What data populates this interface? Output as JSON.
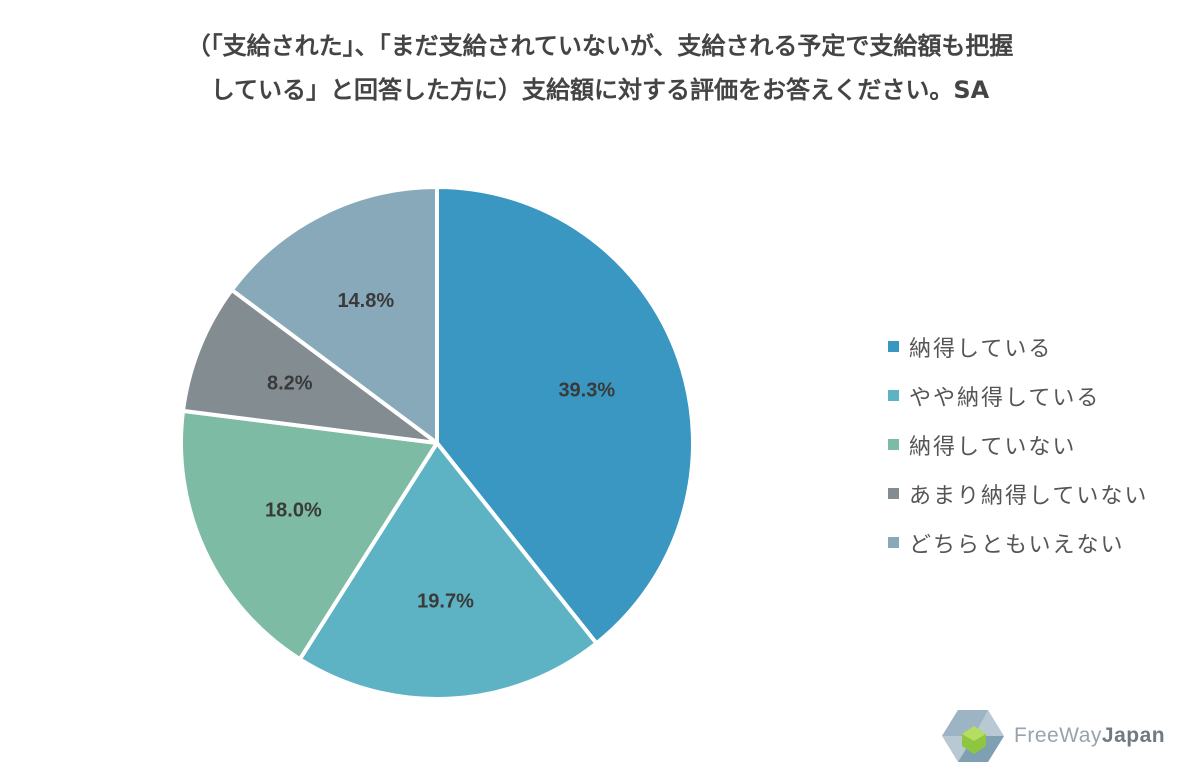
{
  "title": {
    "line1": "（「支給された」、「まだ支給されていないが、支給される予定で支給額も把握",
    "line2": "している」と回答した方に）支給額に対する評価をお答えください。SA"
  },
  "chart_data": {
    "type": "pie",
    "categories": [
      "納得している",
      "やや納得している",
      "納得していない",
      "あまり納得していない",
      "どちらともいえない"
    ],
    "values": [
      39.3,
      19.7,
      18.0,
      8.2,
      14.8
    ],
    "labels": [
      "39.3%",
      "19.7%",
      "18.0%",
      "8.2%",
      "14.8%"
    ],
    "colors": [
      "#3a97c1",
      "#5db3c4",
      "#7dbba5",
      "#838c90",
      "#88a9b9"
    ],
    "legend_position": "right",
    "start": "top",
    "direction": "clockwise"
  },
  "legend": {
    "items": [
      {
        "label": "納得している",
        "color": "#3a97c1"
      },
      {
        "label": "やや納得している",
        "color": "#5db3c4"
      },
      {
        "label": "納得していない",
        "color": "#7dbba5"
      },
      {
        "label": "あまり納得していない",
        "color": "#838c90"
      },
      {
        "label": "どちらともいえない",
        "color": "#88a9b9"
      }
    ]
  },
  "logo": {
    "text_light": "FreeWay",
    "text_bold": "Japan",
    "icon": "cube-logo-icon",
    "colors": {
      "cube": "#9db4c4",
      "core": "#8ec63f"
    }
  }
}
